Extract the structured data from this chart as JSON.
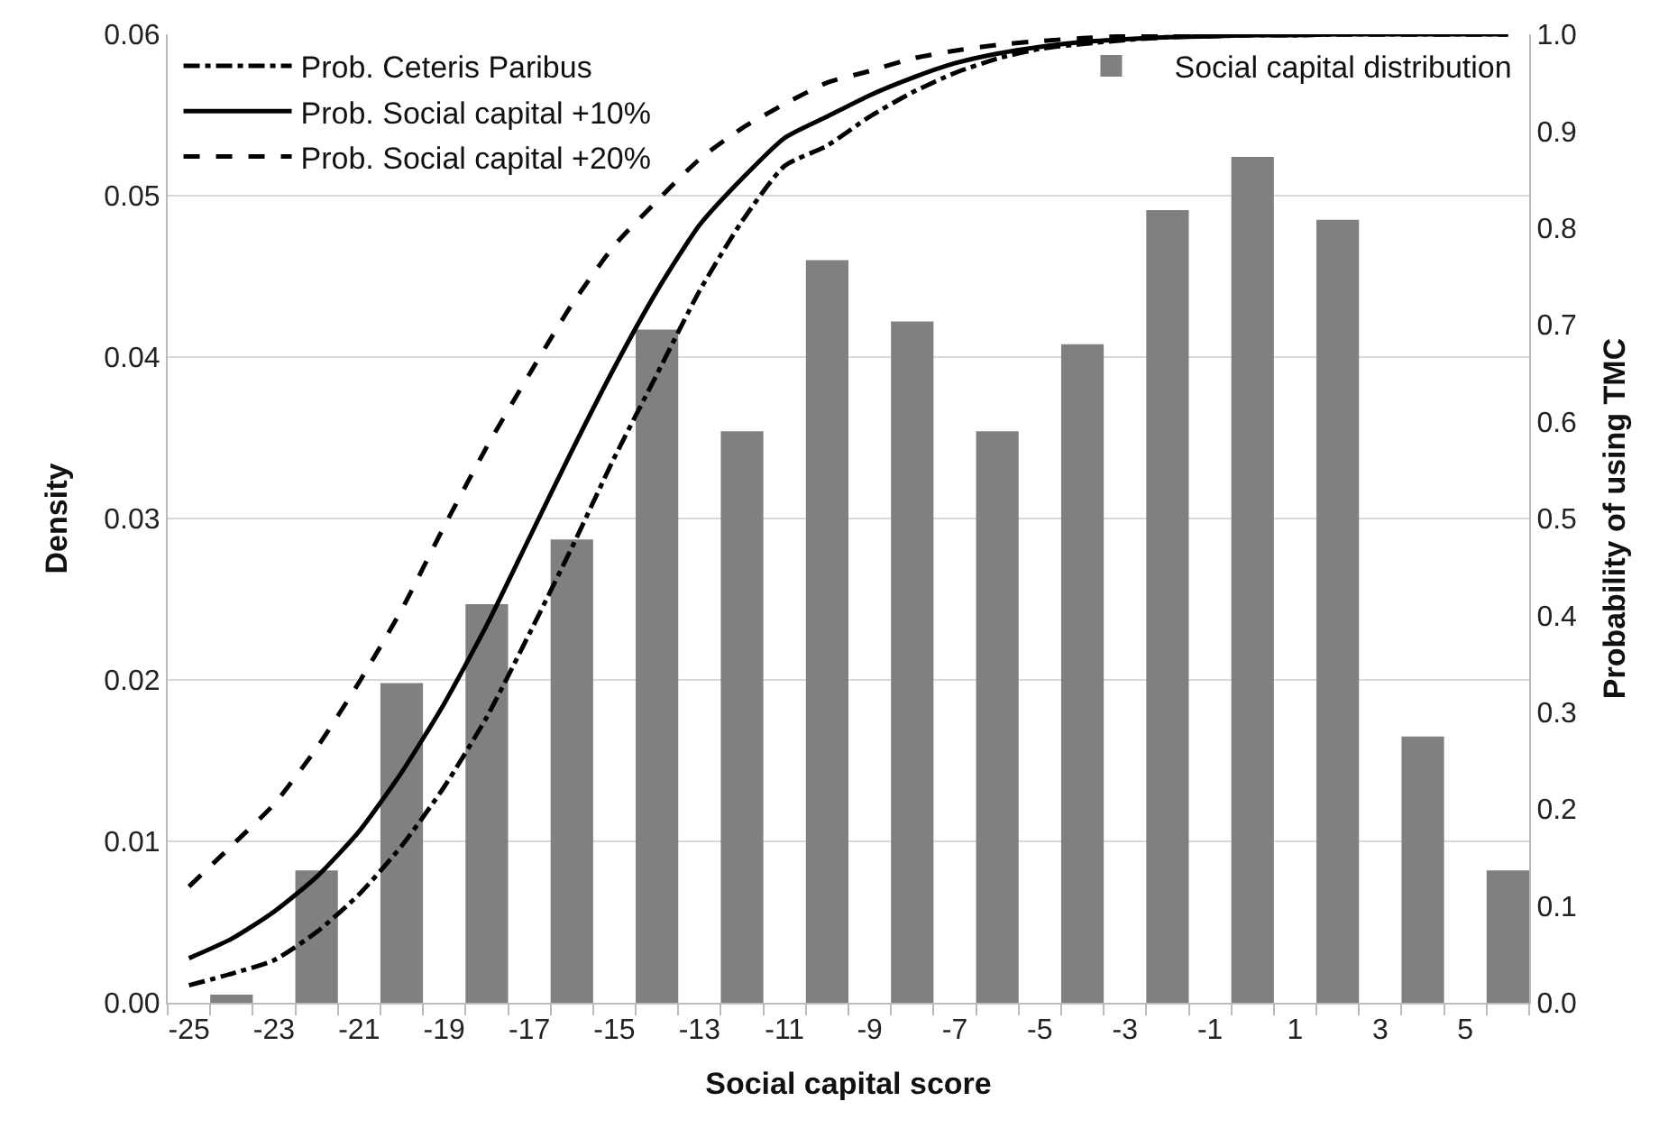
{
  "chart_data": {
    "type": "bar",
    "xlabel": "Social capital score",
    "ylabel": "Density",
    "y2label": "Probability of using TMC",
    "xlim": [
      -25.5,
      6.5
    ],
    "xticks": [
      -25,
      -23,
      -21,
      -19,
      -17,
      -15,
      -13,
      -11,
      -9,
      -7,
      -5,
      -3,
      -1,
      1,
      3,
      5
    ],
    "ylim": [
      0,
      0.06
    ],
    "yticks": [
      {
        "value": 0,
        "label": "0.00"
      },
      {
        "value": 0.01,
        "label": "0.01"
      },
      {
        "value": 0.02,
        "label": "0.02"
      },
      {
        "value": 0.03,
        "label": "0.03"
      },
      {
        "value": 0.04,
        "label": "0.04"
      },
      {
        "value": 0.05,
        "label": "0.05"
      },
      {
        "value": 0.06,
        "label": "0.06"
      }
    ],
    "y2lim": [
      0,
      1
    ],
    "y2ticks": [
      {
        "value": 0,
        "label": "0.0"
      },
      {
        "value": 0.1,
        "label": "0.1"
      },
      {
        "value": 0.2,
        "label": "0.2"
      },
      {
        "value": 0.3,
        "label": "0.3"
      },
      {
        "value": 0.4,
        "label": "0.4"
      },
      {
        "value": 0.5,
        "label": "0.5"
      },
      {
        "value": 0.6,
        "label": "0.6"
      },
      {
        "value": 0.7,
        "label": "0.7"
      },
      {
        "value": 0.8,
        "label": "0.8"
      },
      {
        "value": 0.9,
        "label": "0.9"
      },
      {
        "value": 1,
        "label": "1.0"
      }
    ],
    "grid": "y",
    "legend": "top left",
    "series": [
      {
        "name": "Social capital distribution",
        "color": "#808080",
        "x": [
          -24,
          -22,
          -20,
          -18,
          -16,
          -14,
          -12,
          -10,
          -8,
          -6,
          -4,
          -2,
          0,
          2,
          4,
          6
        ],
        "values": [
          0.0005,
          0.0082,
          0.0198,
          0.0247,
          0.0287,
          0.0417,
          0.0354,
          0.046,
          0.0422,
          0.0354,
          0.0408,
          0.0491,
          0.0524,
          0.0485,
          0.0165,
          0.0082
        ]
      },
      {
        "name": "Prob. Ceteris Paribus",
        "type": "line",
        "axis": "y2",
        "line_style": "dashdot",
        "color": "#000000",
        "x": [
          -25,
          -24,
          -23,
          -22,
          -21,
          -20,
          -19,
          -18,
          -17,
          -16,
          -15,
          -14,
          -13,
          -12,
          -11,
          -10,
          -9,
          -8,
          -7,
          -6,
          -5,
          -4,
          -3,
          -2,
          -1,
          0,
          1,
          2,
          3,
          4,
          5,
          6
        ],
        "values": [
          0.018,
          0.03,
          0.044,
          0.073,
          0.112,
          0.162,
          0.223,
          0.295,
          0.381,
          0.47,
          0.563,
          0.649,
          0.735,
          0.807,
          0.864,
          0.885,
          0.915,
          0.94,
          0.96,
          0.975,
          0.985,
          0.99,
          0.994,
          0.997,
          0.998,
          0.999,
          0.999,
          1.0,
          1.0,
          1.0,
          1.0,
          1.0
        ]
      },
      {
        "name": "Prob. Social capital +10%",
        "type": "line",
        "axis": "y2",
        "line_style": "solid",
        "color": "#000000",
        "x": [
          -25,
          -24,
          -23,
          -22,
          -21,
          -20,
          -19,
          -18,
          -17,
          -16,
          -15,
          -14,
          -13,
          -12,
          -11,
          -10,
          -9,
          -8,
          -7,
          -6,
          -5,
          -4,
          -3,
          -2,
          -1,
          0,
          1,
          2,
          3,
          4,
          5,
          6
        ],
        "values": [
          0.046,
          0.066,
          0.094,
          0.13,
          0.177,
          0.238,
          0.309,
          0.39,
          0.48,
          0.57,
          0.656,
          0.735,
          0.803,
          0.851,
          0.893,
          0.915,
          0.937,
          0.955,
          0.97,
          0.98,
          0.987,
          0.992,
          0.995,
          0.997,
          0.998,
          0.999,
          0.999,
          1.0,
          1.0,
          1.0,
          1.0,
          1.0
        ]
      },
      {
        "name": "Prob. Social capital +20%",
        "type": "line",
        "axis": "y2",
        "line_style": "dashed",
        "color": "#000000",
        "x": [
          -25,
          -24,
          -23,
          -22,
          -21,
          -20,
          -19,
          -18,
          -17,
          -16,
          -15,
          -14,
          -13,
          -12,
          -11,
          -10,
          -9,
          -8,
          -7,
          -6,
          -5,
          -4,
          -3,
          -2,
          -1,
          0,
          1,
          2,
          3,
          4,
          5,
          6
        ],
        "values": [
          0.12,
          0.162,
          0.205,
          0.263,
          0.331,
          0.406,
          0.492,
          0.574,
          0.649,
          0.721,
          0.782,
          0.828,
          0.871,
          0.903,
          0.928,
          0.95,
          0.962,
          0.975,
          0.983,
          0.989,
          0.993,
          0.996,
          0.998,
          0.999,
          0.999,
          1.0,
          1.0,
          1.0,
          1.0,
          1.0,
          1.0,
          1.0
        ]
      }
    ]
  }
}
